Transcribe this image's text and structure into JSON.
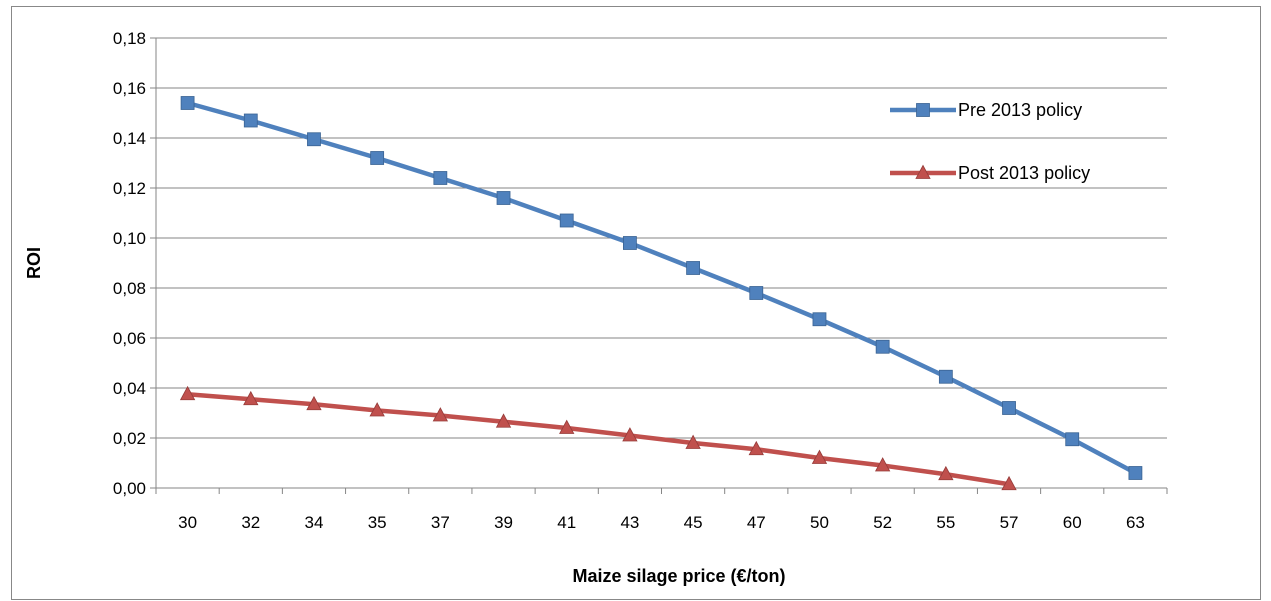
{
  "chart_data": {
    "type": "line",
    "title": "",
    "xlabel": "Maize silage price (€/ton)",
    "ylabel": "ROI",
    "categories": [
      "30",
      "32",
      "34",
      "35",
      "37",
      "39",
      "41",
      "43",
      "45",
      "47",
      "50",
      "52",
      "55",
      "57",
      "60",
      "63"
    ],
    "ylim": [
      0,
      0.18
    ],
    "yticks": [
      "0,00",
      "0,02",
      "0,04",
      "0,06",
      "0,08",
      "0,10",
      "0,12",
      "0,14",
      "0,16",
      "0,18"
    ],
    "grid": true,
    "legend_position": "right",
    "series": [
      {
        "name": "Pre 2013 policy",
        "color": "#4F81BD",
        "marker": "square",
        "values": [
          0.154,
          0.147,
          0.1395,
          0.132,
          0.124,
          0.116,
          0.107,
          0.098,
          0.088,
          0.078,
          0.0675,
          0.0565,
          0.0445,
          0.032,
          0.0195,
          0.006
        ]
      },
      {
        "name": "Post 2013 policy",
        "color": "#C0504D",
        "marker": "triangle",
        "values": [
          0.0375,
          0.0355,
          0.0335,
          0.031,
          0.029,
          0.0265,
          0.024,
          0.021,
          0.018,
          0.0155,
          0.012,
          0.009,
          0.0055,
          0.0015,
          null,
          null
        ]
      }
    ]
  }
}
